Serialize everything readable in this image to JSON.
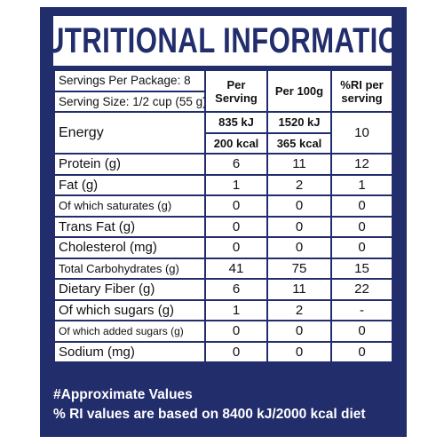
{
  "header": {
    "title": "NUTRITIONAL INFORMATION"
  },
  "table": {
    "servings_per_package": "Servings Per Package: 8",
    "serving_size": "Serving Size: 1/2 cup (55 g)",
    "columns": [
      "Per Serving",
      "Per 100g",
      "%RI per serving"
    ],
    "energy": {
      "label": "Energy",
      "per_serving_kj": "835 kJ",
      "per_100g_kj": "1520 kJ",
      "per_serving_kcal": "200 kcal",
      "per_100g_kcal": "365 kcal",
      "ri": 10
    },
    "rows": [
      [
        "Protein (g)",
        6,
        11,
        12
      ],
      [
        "Fat (g)",
        1,
        2,
        1
      ],
      [
        "Of which saturates (g)",
        0,
        0,
        0
      ],
      [
        "Trans Fat (g)",
        0,
        0,
        0
      ],
      [
        "Cholesterol (mg)",
        0,
        0,
        0
      ],
      [
        "Total Carbohydrates (g)",
        41,
        75,
        15
      ],
      [
        "Dietary Fiber (g)",
        6,
        11,
        22
      ],
      [
        "Of which sugars (g)",
        1,
        2,
        "-"
      ],
      [
        "Of which added sugars (g)",
        0,
        0,
        0
      ],
      [
        "Sodium (mg)",
        0,
        0,
        0
      ]
    ]
  },
  "footer": [
    "#Approximate Values",
    "% RI values are based on 8400 kJ/2000 kcal diet"
  ]
}
